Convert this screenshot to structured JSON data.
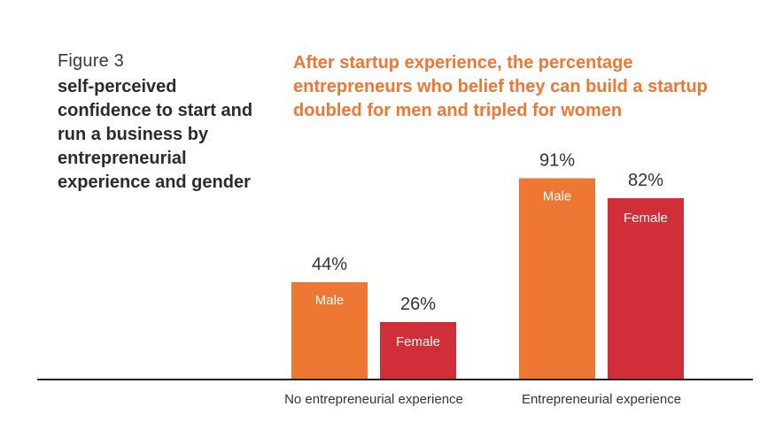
{
  "figure": {
    "label": "Figure 3",
    "caption": "self-perceived confidence to start and run a business by entrepreneurial experience and gender",
    "headline": "After startup experience, the percentage entrepreneurs who belief they can build a startup doubled for men and tripled for women"
  },
  "chart_data": {
    "type": "bar",
    "title": "After startup experience, the percentage entrepreneurs who belief they can build a startup doubled for men and tripled for women",
    "xlabel": "",
    "ylabel": "",
    "categories": [
      "No entrepreneurial experience",
      "Entrepreneurial experience"
    ],
    "series": [
      {
        "name": "Male",
        "values": [
          44,
          91
        ],
        "value_labels": [
          "44%",
          "91%"
        ],
        "color": "#ee7733"
      },
      {
        "name": "Female",
        "values": [
          26,
          82
        ],
        "value_labels": [
          "26%",
          "82%"
        ],
        "color": "#d02f39"
      }
    ],
    "ylim": [
      0,
      100
    ],
    "grid": false,
    "legend": "none",
    "axis_color": "#222222"
  }
}
